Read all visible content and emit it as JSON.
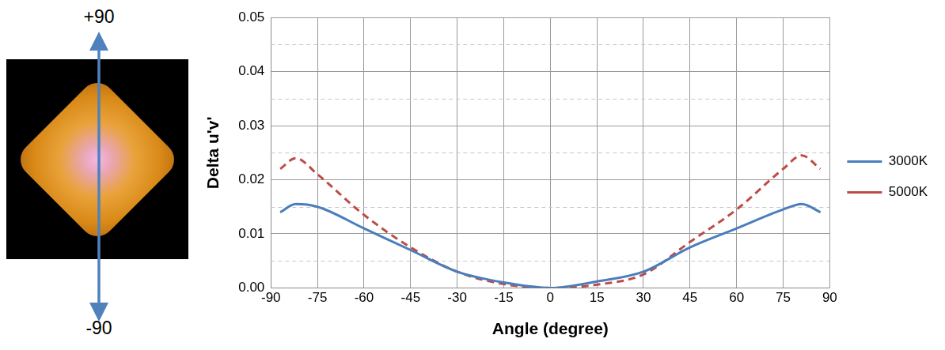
{
  "chart_data": {
    "type": "line",
    "x_label": "Angle (degree)",
    "y_label": "Delta u'v'",
    "annotations": [
      "+90",
      "-90"
    ],
    "x": [
      -87,
      -82,
      -75,
      -60,
      -45,
      -30,
      -15,
      0,
      15,
      30,
      45,
      60,
      75,
      81,
      87
    ],
    "series": [
      {
        "name": "3000K",
        "color": "#4a7ebb",
        "line_style": "solid",
        "values": [
          0.014,
          0.0155,
          0.015,
          0.011,
          0.007,
          0.003,
          0.001,
          0,
          0.0012,
          0.003,
          0.0075,
          0.011,
          0.0145,
          0.0155,
          0.014
        ]
      },
      {
        "name": "5000K",
        "color": "#be4b48",
        "line_style": "dashed",
        "values": [
          0.022,
          0.024,
          0.021,
          0.0135,
          0.0075,
          0.003,
          0.0007,
          0,
          0.0006,
          0.0025,
          0.0085,
          0.0145,
          0.022,
          0.0245,
          0.022
        ]
      }
    ],
    "xlim": [
      -90,
      90
    ],
    "xticks": [
      -90,
      -75,
      -60,
      -45,
      -30,
      -15,
      0,
      15,
      30,
      45,
      60,
      75,
      90
    ],
    "ylim": [
      0,
      0.05
    ],
    "yticks": [
      {
        "value": 0,
        "label": "0.00"
      },
      {
        "value": 0.01,
        "label": "0.01"
      },
      {
        "value": 0.02,
        "label": "0.02"
      },
      {
        "value": 0.03,
        "label": "0.03"
      },
      {
        "value": 0.04,
        "label": "0.04"
      },
      {
        "value": 0.05,
        "label": "0.05"
      }
    ],
    "grid": true,
    "legend": "right"
  }
}
